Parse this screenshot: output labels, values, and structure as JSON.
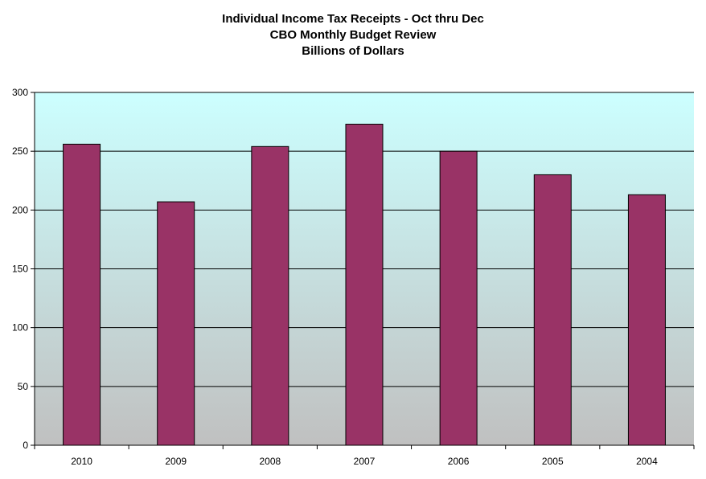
{
  "chart_data": {
    "type": "bar",
    "title_lines": [
      "Individual Income Tax Receipts - Oct thru Dec",
      "CBO Monthly Budget Review",
      "Billions of Dollars"
    ],
    "categories": [
      "2010",
      "2009",
      "2008",
      "2007",
      "2006",
      "2005",
      "2004"
    ],
    "values": [
      256,
      207,
      254,
      273,
      250,
      230,
      213
    ],
    "ylim": [
      0,
      300
    ],
    "yticks": [
      0,
      50,
      100,
      150,
      200,
      250,
      300
    ],
    "grid": true,
    "legend": "none",
    "colors": {
      "bar": "#993366",
      "bar_outline": "#000000",
      "plot_bg_top": "#ccffff",
      "plot_bg_bottom": "#c0c0c0",
      "gridline": "#000000"
    }
  }
}
